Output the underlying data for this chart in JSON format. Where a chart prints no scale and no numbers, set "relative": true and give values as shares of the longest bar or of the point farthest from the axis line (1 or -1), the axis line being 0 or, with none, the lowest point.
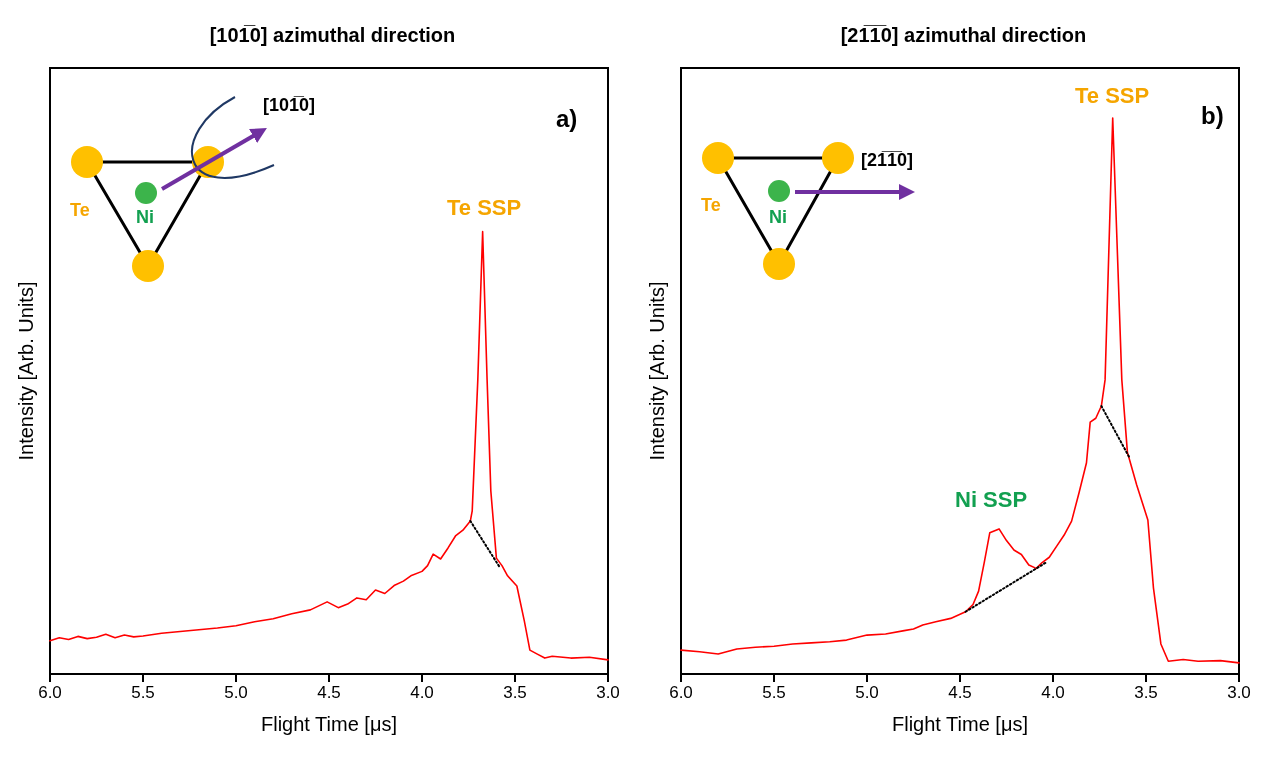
{
  "chart_data": [
    {
      "type": "line",
      "title": "[101̅0] azimuthal direction",
      "xlabel": "Flight Time [μs]",
      "ylabel": "Intensity [Arb. Units]",
      "relative": true,
      "xlim": [
        6,
        3
      ],
      "xticks": [
        {
          "value": 6,
          "label": "6.0"
        },
        {
          "value": 5.5,
          "label": "5.5"
        },
        {
          "value": 5,
          "label": "5.0"
        },
        {
          "value": 4.5,
          "label": "4.5"
        },
        {
          "value": 4,
          "label": "4.0"
        },
        {
          "value": 3.5,
          "label": "3.5"
        },
        {
          "value": 3,
          "label": "3.0"
        }
      ],
      "grid": false,
      "annotations": [
        "Te",
        "Ni",
        "[101̅0]",
        "a)",
        "Te SSP"
      ],
      "series": [
        {
          "color": "#ff0000",
          "line_style": "solid",
          "x": [
            6.0,
            5.95,
            5.9,
            5.85,
            5.8,
            5.75,
            5.7,
            5.65,
            5.6,
            5.55,
            5.5,
            5.4,
            5.3,
            5.2,
            5.1,
            5.0,
            4.9,
            4.8,
            4.7,
            4.6,
            4.51,
            4.45,
            4.4,
            4.35,
            4.3,
            4.25,
            4.2,
            4.15,
            4.1,
            4.06,
            4.0,
            3.97,
            3.94,
            3.9,
            3.86,
            3.82,
            3.78,
            3.74,
            3.73,
            3.7,
            3.674,
            3.65,
            3.63,
            3.6,
            3.57,
            3.54,
            3.49,
            3.45,
            3.42,
            3.38,
            3.34,
            3.3,
            3.2,
            3.1,
            3.0
          ],
          "values": [
            0.075,
            0.082,
            0.078,
            0.085,
            0.08,
            0.083,
            0.09,
            0.082,
            0.088,
            0.084,
            0.086,
            0.092,
            0.096,
            0.1,
            0.104,
            0.109,
            0.118,
            0.125,
            0.136,
            0.145,
            0.163,
            0.15,
            0.158,
            0.172,
            0.168,
            0.19,
            0.182,
            0.2,
            0.21,
            0.222,
            0.232,
            0.245,
            0.271,
            0.26,
            0.285,
            0.312,
            0.325,
            0.346,
            0.369,
            0.665,
            1.0,
            0.665,
            0.414,
            0.262,
            0.245,
            0.222,
            0.199,
            0.12,
            0.054,
            0.045,
            0.036,
            0.04,
            0.036,
            0.038,
            0.032
          ]
        },
        {
          "color": "#000000",
          "line_style": "dotted",
          "x": [
            3.74,
            3.58
          ],
          "values": [
            0.346,
            0.24
          ]
        }
      ]
    },
    {
      "type": "line",
      "title": "[21̅1̅0] azimuthal direction",
      "xlabel": "Flight Time [μs]",
      "ylabel": "Intensity [Arb. Units]",
      "relative": true,
      "xlim": [
        6,
        3
      ],
      "xticks": [
        {
          "value": 6,
          "label": "6.0"
        },
        {
          "value": 5.5,
          "label": "5.5"
        },
        {
          "value": 5,
          "label": "5.0"
        },
        {
          "value": 4.5,
          "label": "4.5"
        },
        {
          "value": 4,
          "label": "4.0"
        },
        {
          "value": 3.5,
          "label": "3.5"
        },
        {
          "value": 3,
          "label": "3.0"
        }
      ],
      "grid": false,
      "annotations": [
        "Te",
        "Ni",
        "[21̅1̅0]",
        "b)",
        "Ni SSP",
        "Te SSP"
      ],
      "series": [
        {
          "color": "#ff0000",
          "line_style": "solid",
          "x": [
            6.0,
            5.9,
            5.8,
            5.7,
            5.6,
            5.5,
            5.4,
            5.3,
            5.2,
            5.11,
            5.0,
            4.9,
            4.8,
            4.75,
            4.7,
            4.63,
            4.55,
            4.47,
            4.43,
            4.4,
            4.37,
            4.34,
            4.29,
            4.25,
            4.21,
            4.17,
            4.13,
            4.09,
            4.06,
            4.02,
            3.98,
            3.94,
            3.9,
            3.86,
            3.82,
            3.8,
            3.77,
            3.74,
            3.72,
            3.679,
            3.63,
            3.6,
            3.55,
            3.49,
            3.46,
            3.42,
            3.38,
            3.3,
            3.22,
            3.1,
            3.0
          ],
          "values": [
            0.043,
            0.04,
            0.036,
            0.045,
            0.048,
            0.05,
            0.054,
            0.056,
            0.058,
            0.061,
            0.07,
            0.072,
            0.078,
            0.081,
            0.088,
            0.094,
            0.1,
            0.112,
            0.125,
            0.149,
            0.2,
            0.254,
            0.261,
            0.24,
            0.223,
            0.215,
            0.196,
            0.19,
            0.2,
            0.21,
            0.23,
            0.25,
            0.275,
            0.326,
            0.38,
            0.453,
            0.46,
            0.482,
            0.529,
            1.0,
            0.529,
            0.399,
            0.34,
            0.277,
            0.155,
            0.054,
            0.023,
            0.026,
            0.023,
            0.024,
            0.02
          ]
        },
        {
          "color": "#000000",
          "line_style": "dotted",
          "x": [
            4.47,
            4.04
          ],
          "values": [
            0.112,
            0.2
          ]
        },
        {
          "color": "#000000",
          "line_style": "dotted",
          "x": [
            3.74,
            3.59
          ],
          "values": [
            0.482,
            0.39
          ]
        }
      ]
    }
  ]
}
